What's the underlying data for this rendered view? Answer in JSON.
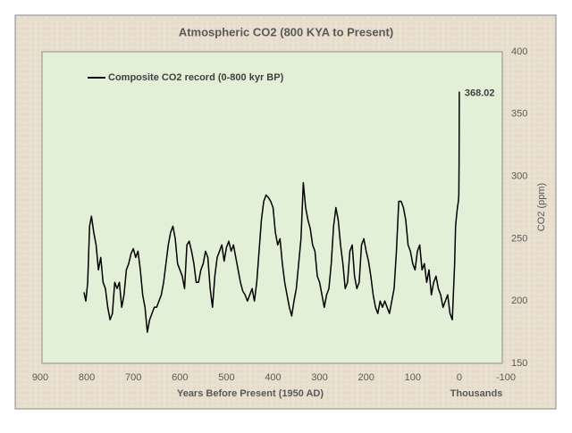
{
  "chart_data": {
    "type": "line",
    "title": "Atmospheric CO2 (800 KYA to Present)",
    "x_label": "Years Before Present (1950 AD)",
    "x_unit_label": "Thousands",
    "y_label": "CO2 (ppm)",
    "legend": "upper left",
    "x": [
      806,
      802,
      798,
      794,
      790,
      785,
      780,
      775,
      770,
      765,
      760,
      755,
      750,
      745,
      740,
      735,
      730,
      725,
      720,
      715,
      710,
      705,
      700,
      695,
      690,
      685,
      680,
      675,
      670,
      665,
      660,
      655,
      650,
      645,
      640,
      635,
      630,
      625,
      620,
      615,
      610,
      605,
      600,
      595,
      590,
      585,
      580,
      575,
      570,
      565,
      560,
      555,
      550,
      545,
      540,
      535,
      530,
      525,
      520,
      515,
      510,
      505,
      500,
      495,
      490,
      485,
      480,
      475,
      470,
      465,
      460,
      455,
      450,
      445,
      440,
      435,
      430,
      425,
      420,
      415,
      410,
      405,
      400,
      395,
      390,
      385,
      380,
      375,
      370,
      365,
      360,
      355,
      350,
      345,
      340,
      335,
      330,
      325,
      320,
      315,
      310,
      305,
      300,
      295,
      290,
      285,
      280,
      275,
      270,
      265,
      260,
      255,
      250,
      245,
      240,
      235,
      230,
      225,
      220,
      215,
      210,
      205,
      200,
      195,
      190,
      185,
      180,
      175,
      170,
      165,
      160,
      155,
      150,
      145,
      140,
      135,
      130,
      125,
      120,
      115,
      110,
      105,
      100,
      95,
      90,
      85,
      80,
      75,
      70,
      65,
      60,
      55,
      50,
      45,
      40,
      35,
      30,
      25,
      20,
      15,
      10,
      8,
      6,
      4,
      2,
      1,
      0.5,
      0.2,
      0
    ],
    "series": [
      {
        "name": "Composite CO2 record (0-800 kyr BP)",
        "color": "#000000",
        "values": [
          207,
          200,
          215,
          260,
          268,
          255,
          245,
          225,
          235,
          215,
          210,
          195,
          185,
          190,
          215,
          210,
          215,
          195,
          205,
          225,
          230,
          238,
          242,
          235,
          240,
          225,
          205,
          195,
          175,
          185,
          190,
          195,
          195,
          200,
          205,
          215,
          230,
          245,
          255,
          260,
          250,
          230,
          225,
          220,
          210,
          245,
          248,
          240,
          230,
          215,
          215,
          225,
          230,
          240,
          235,
          210,
          195,
          220,
          235,
          240,
          245,
          232,
          243,
          248,
          240,
          245,
          235,
          225,
          215,
          208,
          205,
          200,
          205,
          210,
          200,
          215,
          240,
          265,
          280,
          285,
          283,
          280,
          275,
          255,
          245,
          250,
          230,
          215,
          205,
          195,
          188,
          200,
          210,
          230,
          250,
          295,
          275,
          265,
          258,
          245,
          240,
          220,
          215,
          205,
          195,
          205,
          210,
          230,
          260,
          275,
          265,
          245,
          230,
          210,
          215,
          240,
          245,
          220,
          210,
          215,
          245,
          250,
          240,
          232,
          220,
          205,
          195,
          190,
          200,
          195,
          200,
          195,
          190,
          200,
          210,
          240,
          280,
          280,
          275,
          265,
          245,
          240,
          230,
          225,
          240,
          245,
          225,
          230,
          215,
          225,
          205,
          215,
          220,
          210,
          205,
          195,
          200,
          205,
          190,
          185,
          230,
          260,
          268,
          275,
          280,
          285,
          310,
          340,
          368.02
        ]
      }
    ],
    "xlim": [
      900,
      -100
    ],
    "xticks": [
      900,
      800,
      700,
      600,
      500,
      400,
      300,
      200,
      100,
      0,
      -100
    ],
    "ylim": [
      150,
      400
    ],
    "yticks": [
      150,
      200,
      250,
      300,
      350,
      400
    ]
  }
}
